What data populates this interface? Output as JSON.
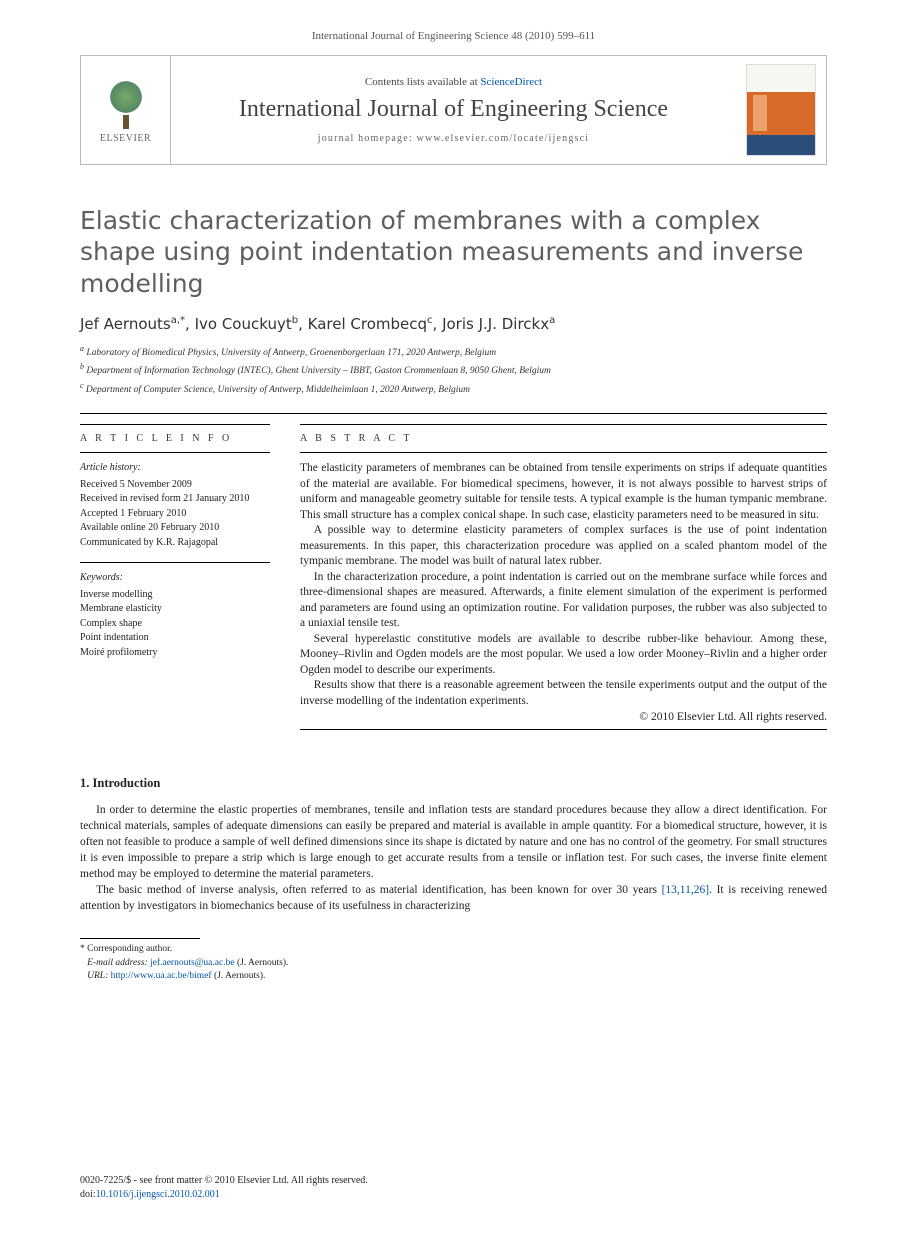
{
  "running_head": "International Journal of Engineering Science 48 (2010) 599–611",
  "header": {
    "publisher": "ELSEVIER",
    "contents_prefix": "Contents lists available at ",
    "contents_link": "ScienceDirect",
    "journal_name": "International Journal of Engineering Science",
    "homepage_label": "journal homepage: www.elsevier.com/locate/ijengsci"
  },
  "title": "Elastic characterization of membranes with a complex shape using point indentation measurements and inverse modelling",
  "authors_html": "Jef Aernouts",
  "authors": [
    {
      "name": "Jef Aernouts",
      "sup": "a,*"
    },
    {
      "name": "Ivo Couckuyt",
      "sup": "b"
    },
    {
      "name": "Karel Crombecq",
      "sup": "c"
    },
    {
      "name": "Joris J.J. Dirckx",
      "sup": "a"
    }
  ],
  "affiliations": [
    {
      "sup": "a",
      "text": "Laboratory of Biomedical Physics, University of Antwerp, Groenenborgerlaan 171, 2020 Antwerp, Belgium"
    },
    {
      "sup": "b",
      "text": "Department of Information Technology (INTEC), Ghent University – IBBT, Gaston Crommenlaan 8, 9050 Ghent, Belgium"
    },
    {
      "sup": "c",
      "text": "Department of Computer Science, University of Antwerp, Middelheimlaan 1, 2020 Antwerp, Belgium"
    }
  ],
  "article_info": {
    "head": "A R T I C L E   I N F O",
    "history_head": "Article history:",
    "history": [
      "Received 5 November 2009",
      "Received in revised form 21 January 2010",
      "Accepted 1 February 2010",
      "Available online 20 February 2010",
      "Communicated by K.R. Rajagopal"
    ],
    "keywords_head": "Keywords:",
    "keywords": [
      "Inverse modelling",
      "Membrane elasticity",
      "Complex shape",
      "Point indentation",
      "Moiré profilometry"
    ]
  },
  "abstract": {
    "head": "A B S T R A C T",
    "paragraphs": [
      "The elasticity parameters of membranes can be obtained from tensile experiments on strips if adequate quantities of the material are available. For biomedical specimens, however, it is not always possible to harvest strips of uniform and manageable geometry suitable for tensile tests. A typical example is the human tympanic membrane. This small structure has a complex conical shape. In such case, elasticity parameters need to be measured in situ.",
      "A possible way to determine elasticity parameters of complex surfaces is the use of point indentation measurements. In this paper, this characterization procedure was applied on a scaled phantom model of the tympanic membrane. The model was built of natural latex rubber.",
      "In the characterization procedure, a point indentation is carried out on the membrane surface while forces and three-dimensional shapes are measured. Afterwards, a finite element simulation of the experiment is performed and parameters are found using an optimization routine. For validation purposes, the rubber was also subjected to a uniaxial tensile test.",
      "Several hyperelastic constitutive models are available to describe rubber-like behaviour. Among these, Mooney–Rivlin and Ogden models are the most popular. We used a low order Mooney–Rivlin and a higher order Ogden model to describe our experiments.",
      "Results show that there is a reasonable agreement between the tensile experiments output and the output of the inverse modelling of the indentation experiments."
    ],
    "copyright": "© 2010 Elsevier Ltd. All rights reserved."
  },
  "intro": {
    "heading": "1. Introduction",
    "paragraphs": [
      "In order to determine the elastic properties of membranes, tensile and inflation tests are standard procedures because they allow a direct identification. For technical materials, samples of adequate dimensions can easily be prepared and material is available in ample quantity. For a biomedical structure, however, it is often not feasible to produce a sample of well defined dimensions since its shape is dictated by nature and one has no control of the geometry. For small structures it is even impossible to prepare a strip which is large enough to get accurate results from a tensile or inflation test. For such cases, the inverse finite element method may be employed to determine the material parameters.",
      "The basic method of inverse analysis, often referred to as material identification, has been known for over 30 years "
    ],
    "refs": "[13,11,26]",
    "para2_tail": ". It is receiving renewed attention by investigators in biomechanics because of its usefulness in characterizing"
  },
  "footnotes": {
    "corr": "* Corresponding author.",
    "email_label": "E-mail address: ",
    "email": "jef.aernouts@ua.ac.be",
    "email_tail": " (J. Aernouts).",
    "url_label": "URL: ",
    "url": "http://www.ua.ac.be/bimef",
    "url_tail": " (J. Aernouts)."
  },
  "bottom": {
    "line1": "0020-7225/$ - see front matter © 2010 Elsevier Ltd. All rights reserved.",
    "doi_label": "doi:",
    "doi": "10.1016/j.ijengsci.2010.02.001"
  }
}
